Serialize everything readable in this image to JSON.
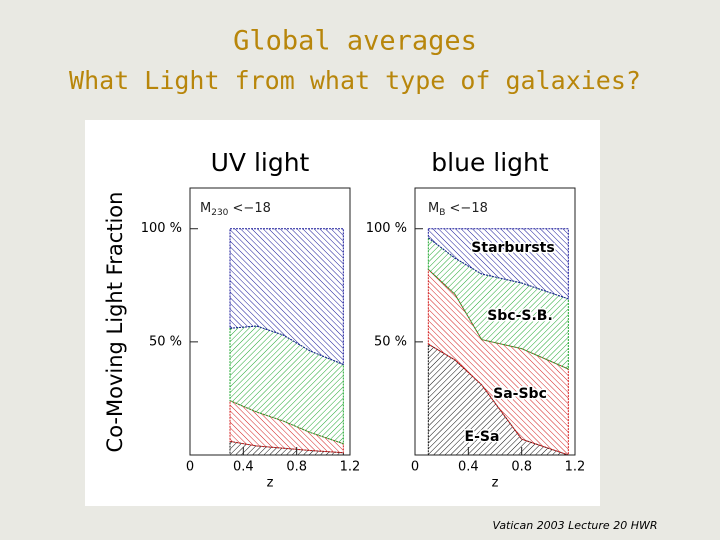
{
  "slide_title": "Global averages",
  "slide_subtitle": "What Light from what type of galaxies?",
  "footer": "Vatican 2003 Lecture 20 HWR",
  "chart_data": [
    {
      "type": "area",
      "title": "UV light",
      "ylabel": "Co-Moving Light Fraction",
      "xlabel": "z",
      "annotation": {
        "base": "M",
        "sub": "230",
        "rest": " <−18"
      },
      "x": [
        0.3,
        0.5,
        0.7,
        0.9,
        1.15
      ],
      "series": [
        {
          "color": "#111111",
          "values": [
            6,
            4,
            3,
            2,
            1
          ]
        },
        {
          "color": "#d42020",
          "values": [
            18,
            15,
            12,
            8,
            4
          ]
        },
        {
          "color": "#22a832",
          "values": [
            32,
            38,
            38,
            36,
            35
          ]
        },
        {
          "color": "#1a1a9a",
          "values": [
            44,
            43,
            47,
            54,
            60
          ]
        }
      ],
      "xlim": [
        0,
        1.2
      ],
      "xticks": [
        0,
        0.4,
        0.8,
        1.2
      ],
      "ylim": [
        0,
        118
      ],
      "yticks": [
        {
          "value": 50,
          "label": "50 %"
        },
        {
          "value": 100,
          "label": "100 %"
        }
      ]
    },
    {
      "type": "area",
      "title": "blue light",
      "xlabel": "z",
      "annotation": {
        "base": "M",
        "sub": "B",
        "rest": " <−18"
      },
      "x": [
        0.1,
        0.3,
        0.5,
        0.8,
        1.15
      ],
      "series": [
        {
          "name": "E-Sa",
          "color": "#111111",
          "values": [
            49,
            42,
            31,
            7,
            0
          ]
        },
        {
          "name": "Sa-Sbc",
          "color": "#d42020",
          "values": [
            33,
            29,
            20,
            40,
            38
          ]
        },
        {
          "name": "Sbc-S.B.",
          "color": "#22a832",
          "values": [
            14,
            16,
            29,
            29,
            31
          ]
        },
        {
          "name": "Starbursts",
          "color": "#1a1a9a",
          "values": [
            4,
            13,
            20,
            24,
            31
          ]
        }
      ],
      "xlim": [
        0,
        1.2
      ],
      "xticks": [
        0,
        0.4,
        0.8,
        1.2
      ],
      "ylim": [
        0,
        118
      ],
      "yticks": [
        {
          "value": 50,
          "label": "50 %"
        },
        {
          "value": 100,
          "label": "100 %"
        }
      ]
    }
  ]
}
